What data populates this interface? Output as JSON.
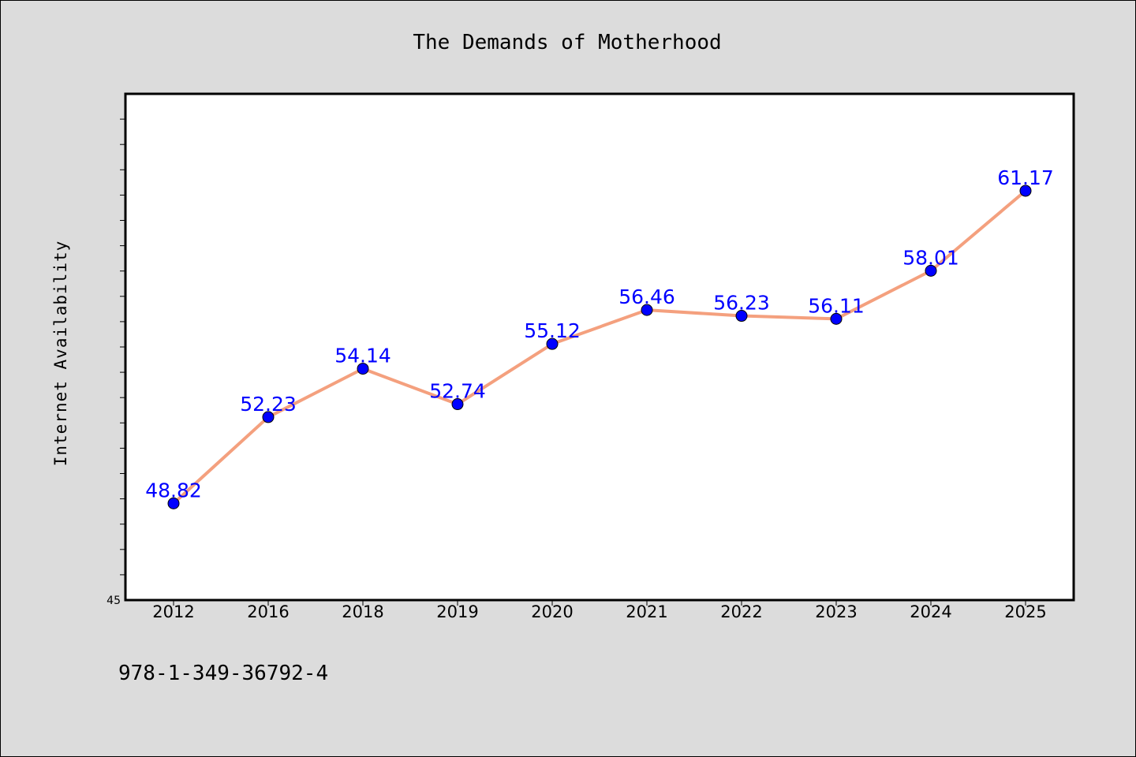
{
  "chart_data": {
    "type": "line",
    "title": "The Demands of Motherhood",
    "xlabel": "",
    "ylabel": "Internet Availability",
    "categories": [
      "2012",
      "2016",
      "2018",
      "2019",
      "2020",
      "2021",
      "2022",
      "2023",
      "2024",
      "2025"
    ],
    "values": [
      48.82,
      52.23,
      54.14,
      52.74,
      55.12,
      56.46,
      56.23,
      56.11,
      58.01,
      61.17
    ],
    "data_labels": [
      "48.82",
      "52.23",
      "54.14",
      "52.74",
      "55.12",
      "56.46",
      "56.23",
      "56.11",
      "58.01",
      "61.17"
    ],
    "ylim": [
      45,
      65
    ],
    "y_tick_labels": [
      "45"
    ],
    "grid": false,
    "legend": "none",
    "colors": {
      "line": "#f4a07e",
      "marker": "#0000ff",
      "data_label": "#0000ff",
      "background": "#dcdcdc",
      "plot_area": "#ffffff"
    }
  },
  "footer": {
    "isbn": "978-1-349-36792-4"
  }
}
